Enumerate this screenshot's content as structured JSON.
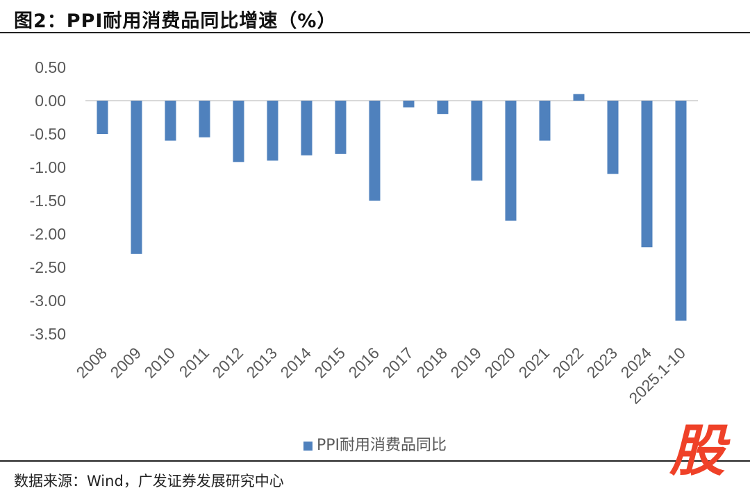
{
  "title": "图2：PPI耐用消费品同比增速（%）",
  "source": "数据来源：Wind，广发证券发展研究中心",
  "logo": "股",
  "chart_data": {
    "type": "bar",
    "title": "图2：PPI耐用消费品同比增速（%）",
    "categories": [
      "2008",
      "2009",
      "2010",
      "2011",
      "2012",
      "2013",
      "2014",
      "2015",
      "2016",
      "2017",
      "2018",
      "2019",
      "2020",
      "2021",
      "2022",
      "2023",
      "2024",
      "2025.1-10"
    ],
    "series": [
      {
        "name": "PPI耐用消费品同比",
        "values": [
          -0.5,
          -2.3,
          -0.6,
          -0.55,
          -0.92,
          -0.9,
          -0.82,
          -0.8,
          -1.5,
          -0.1,
          -0.2,
          -1.2,
          -1.8,
          -0.6,
          0.1,
          -1.1,
          -2.2,
          -3.3
        ],
        "color": "#4f81bd"
      }
    ],
    "ylim": [
      -3.5,
      0.5
    ],
    "yticks": [
      "0.50",
      "0.00",
      "-0.50",
      "-1.00",
      "-1.50",
      "-2.00",
      "-2.50",
      "-3.00",
      "-3.50"
    ],
    "grid": false,
    "legend": "bottom",
    "xlabel": "",
    "ylabel": ""
  }
}
